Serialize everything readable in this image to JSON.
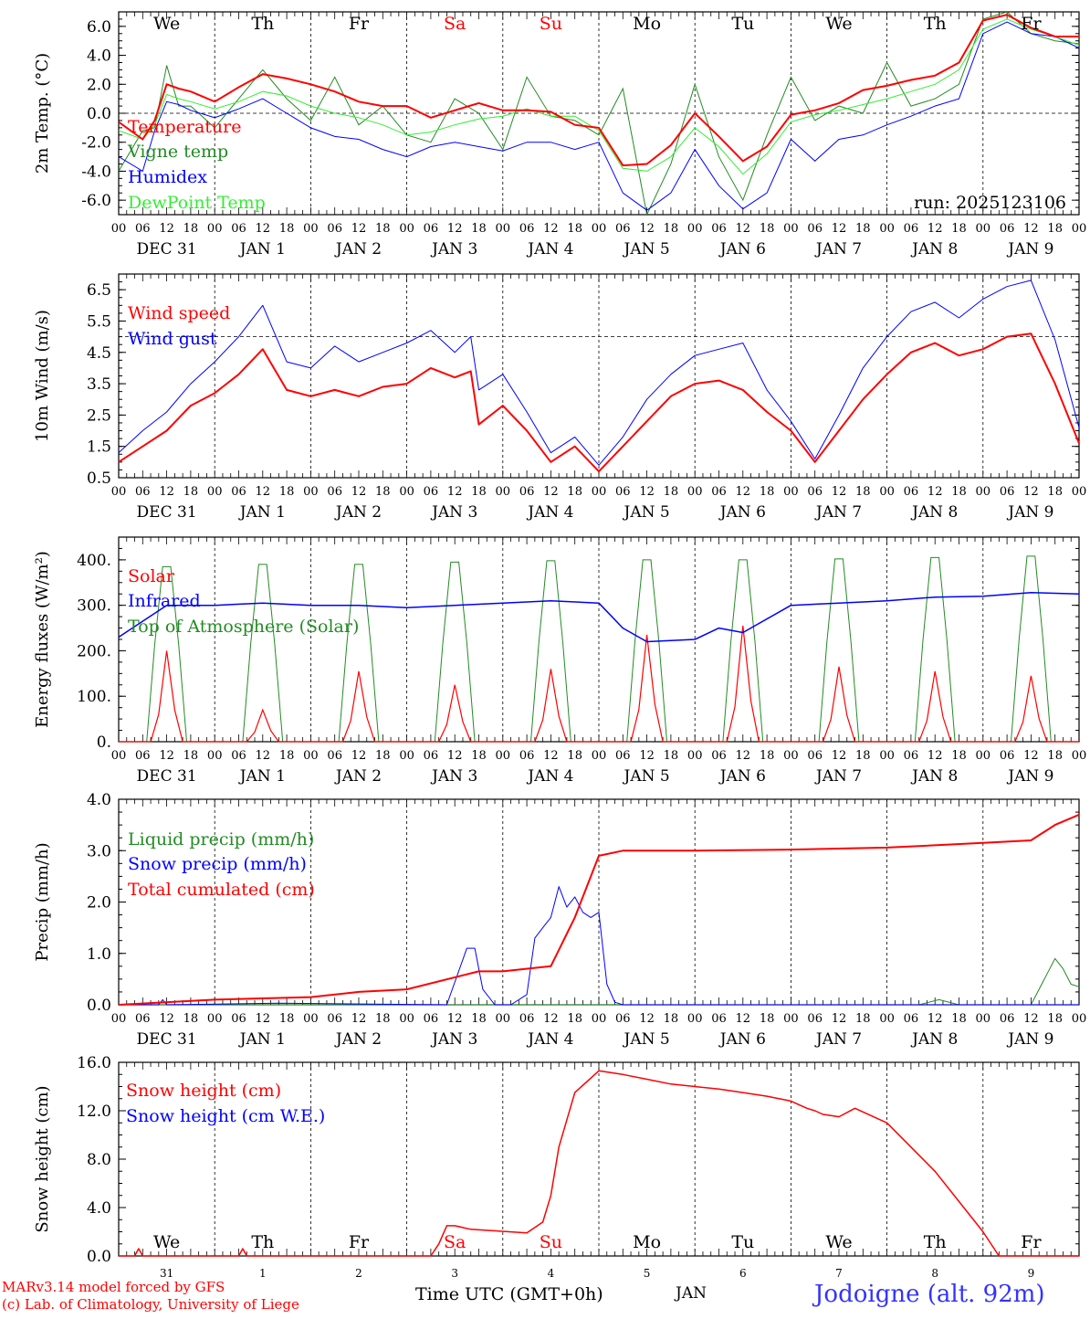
{
  "footer": {
    "credit_line1": "MARv3.14 model forced by GFS",
    "credit_line2": "(c) Lab. of Climatology, University of Liege",
    "time_label": "Time UTC (GMT+0h)",
    "month_label": "JAN",
    "station": "Jodoigne (alt. 92m)"
  },
  "colors": {
    "red": "#ff0000",
    "green": "#228b22",
    "blue": "#0000ff",
    "lightgreen": "#33ee33",
    "black": "#000000"
  },
  "axis_hours": [
    "00",
    "06",
    "12",
    "18"
  ],
  "days": [
    {
      "date": "DEC 31",
      "weekday": "We",
      "short": "31",
      "weekend": false
    },
    {
      "date": "JAN  1",
      "weekday": "Th",
      "short": "1",
      "weekend": false
    },
    {
      "date": "JAN  2",
      "weekday": "Fr",
      "short": "2",
      "weekend": false
    },
    {
      "date": "JAN  3",
      "weekday": "Sa",
      "short": "3",
      "weekend": true
    },
    {
      "date": "JAN  4",
      "weekday": "Su",
      "short": "4",
      "weekend": true
    },
    {
      "date": "JAN  5",
      "weekday": "Mo",
      "short": "5",
      "weekend": false
    },
    {
      "date": "JAN  6",
      "weekday": "Tu",
      "short": "6",
      "weekend": false
    },
    {
      "date": "JAN  7",
      "weekday": "We",
      "short": "7",
      "weekend": false
    },
    {
      "date": "JAN  8",
      "weekday": "Th",
      "short": "8",
      "weekend": false
    },
    {
      "date": "JAN  9",
      "weekday": "Fr",
      "short": "9",
      "weekend": false
    }
  ],
  "chart_data": [
    {
      "type": "line",
      "ylabel": "2m Temp. (°C)",
      "ylim": [
        -7,
        7
      ],
      "yticks": [
        "6.0",
        "4.0",
        "2.0",
        "0.0",
        "-2.0",
        "-4.0",
        "-6.0"
      ],
      "ytick_values": [
        6,
        4,
        2,
        0,
        -2,
        -4,
        -6
      ],
      "hline": 0,
      "run_label": "run: 2025123106",
      "x_unit": "hours since DEC 31 00 UTC",
      "series": [
        {
          "name": "Temperature",
          "color": "red",
          "width": 2,
          "x": [
            0,
            6,
            9,
            12,
            15,
            18,
            24,
            30,
            36,
            42,
            48,
            54,
            60,
            66,
            72,
            78,
            84,
            90,
            96,
            102,
            108,
            114,
            120,
            126,
            132,
            138,
            144,
            150,
            156,
            162,
            168,
            174,
            180,
            186,
            192,
            198,
            204,
            210,
            216,
            222,
            228,
            234,
            240
          ],
          "y": [
            -0.6,
            -1.8,
            -0.5,
            2.0,
            1.7,
            1.5,
            0.8,
            1.8,
            2.7,
            2.4,
            2.0,
            1.5,
            0.8,
            0.5,
            0.5,
            -0.3,
            0.2,
            0.7,
            0.2,
            0.2,
            0.1,
            -0.8,
            -1.0,
            -3.6,
            -3.5,
            -2.2,
            0.0,
            -1.6,
            -3.3,
            -2.3,
            -0.1,
            0.2,
            0.7,
            1.6,
            1.9,
            2.3,
            2.6,
            3.5,
            6.4,
            6.8,
            5.9,
            5.3,
            5.3
          ]
        },
        {
          "name": "Vigne temp",
          "color": "green",
          "width": 1,
          "x": [
            0,
            6,
            9,
            12,
            15,
            18,
            24,
            30,
            36,
            42,
            48,
            54,
            60,
            66,
            72,
            78,
            84,
            90,
            96,
            102,
            108,
            114,
            120,
            126,
            132,
            138,
            144,
            150,
            156,
            162,
            168,
            174,
            180,
            186,
            192,
            198,
            204,
            210,
            216,
            222,
            228,
            234,
            240
          ],
          "y": [
            -4.0,
            -1.2,
            -1.0,
            3.3,
            0.5,
            0.5,
            -1.0,
            1.0,
            3.0,
            1.0,
            -0.5,
            2.5,
            -0.8,
            0.5,
            -1.5,
            -2.0,
            1.0,
            0.0,
            -2.5,
            2.5,
            -0.2,
            -0.5,
            -1.5,
            1.7,
            -7.0,
            -3.5,
            2.0,
            -3.0,
            -6.0,
            -1.5,
            2.5,
            -0.5,
            0.5,
            0.0,
            3.5,
            0.5,
            1.0,
            2.0,
            6.5,
            7.0,
            5.5,
            5.0,
            4.8
          ]
        },
        {
          "name": "Humidex",
          "color": "blue",
          "width": 1,
          "x": [
            0,
            6,
            9,
            12,
            15,
            18,
            24,
            30,
            36,
            42,
            48,
            54,
            60,
            66,
            72,
            78,
            84,
            90,
            96,
            102,
            108,
            114,
            120,
            126,
            132,
            138,
            144,
            150,
            156,
            162,
            168,
            174,
            180,
            186,
            192,
            198,
            204,
            210,
            216,
            222,
            228,
            234,
            240
          ],
          "y": [
            -3.0,
            -4.0,
            -1.2,
            0.8,
            0.6,
            0.2,
            -0.3,
            0.3,
            1.0,
            0.0,
            -1.0,
            -1.6,
            -1.8,
            -2.5,
            -3.0,
            -2.3,
            -2.0,
            -2.3,
            -2.6,
            -2.0,
            -2.0,
            -2.5,
            -2.0,
            -5.5,
            -6.7,
            -5.5,
            -2.5,
            -5.0,
            -6.6,
            -5.5,
            -1.8,
            -3.3,
            -1.8,
            -1.5,
            -0.8,
            -0.2,
            0.5,
            1.0,
            5.5,
            6.3,
            5.5,
            5.3,
            4.5
          ]
        },
        {
          "name": "DewPoint Temp",
          "color": "lightgreen",
          "width": 1,
          "x": [
            0,
            6,
            9,
            12,
            15,
            18,
            24,
            30,
            36,
            42,
            48,
            54,
            60,
            66,
            72,
            78,
            84,
            90,
            96,
            102,
            108,
            114,
            120,
            126,
            132,
            138,
            144,
            150,
            156,
            162,
            168,
            174,
            180,
            186,
            192,
            198,
            204,
            210,
            216,
            222,
            228,
            234,
            240
          ],
          "y": [
            -1.2,
            -1.8,
            -0.8,
            1.3,
            1.0,
            0.8,
            0.3,
            0.8,
            1.5,
            1.2,
            0.5,
            0.0,
            -0.3,
            -0.8,
            -1.5,
            -1.3,
            -0.8,
            -0.4,
            -0.2,
            0.3,
            -0.2,
            -0.2,
            -1.2,
            -3.8,
            -4.0,
            -3.0,
            -1.0,
            -2.3,
            -4.2,
            -2.8,
            -0.6,
            -0.1,
            0.2,
            0.6,
            1.0,
            1.5,
            2.0,
            3.0,
            5.8,
            6.5,
            5.8,
            5.3,
            4.7
          ]
        }
      ]
    },
    {
      "type": "line",
      "ylabel": "10m Wind (m/s)",
      "ylim": [
        0.5,
        7.0
      ],
      "yticks": [
        "6.5",
        "5.5",
        "4.5",
        "3.5",
        "2.5",
        "1.5",
        "0.5"
      ],
      "ytick_values": [
        6.5,
        5.5,
        4.5,
        3.5,
        2.5,
        1.5,
        0.5
      ],
      "hline": 5.0,
      "x_unit": "hours since DEC 31 00 UTC",
      "series": [
        {
          "name": "Wind speed",
          "color": "red",
          "width": 2,
          "x": [
            0,
            6,
            12,
            18,
            24,
            30,
            36,
            42,
            48,
            54,
            60,
            66,
            72,
            78,
            84,
            88,
            90,
            96,
            102,
            108,
            114,
            120,
            126,
            132,
            138,
            144,
            150,
            156,
            162,
            168,
            174,
            180,
            186,
            192,
            198,
            204,
            210,
            216,
            222,
            228,
            234,
            240
          ],
          "y": [
            1.0,
            1.5,
            2.0,
            2.8,
            3.2,
            3.8,
            4.6,
            3.3,
            3.1,
            3.3,
            3.1,
            3.4,
            3.5,
            4.0,
            3.7,
            3.9,
            2.2,
            2.8,
            2.0,
            1.0,
            1.5,
            0.7,
            1.5,
            2.3,
            3.1,
            3.5,
            3.6,
            3.3,
            2.6,
            2.0,
            1.0,
            2.0,
            3.0,
            3.8,
            4.5,
            4.8,
            4.4,
            4.6,
            5.0,
            5.1,
            3.5,
            1.6
          ]
        },
        {
          "name": "Wind gust",
          "color": "blue",
          "width": 1,
          "x": [
            0,
            6,
            12,
            18,
            24,
            30,
            36,
            42,
            48,
            54,
            60,
            66,
            72,
            78,
            84,
            88,
            90,
            96,
            102,
            108,
            114,
            120,
            126,
            132,
            138,
            144,
            150,
            156,
            162,
            168,
            174,
            180,
            186,
            192,
            198,
            204,
            210,
            216,
            222,
            228,
            234,
            240
          ],
          "y": [
            1.3,
            2.0,
            2.6,
            3.5,
            4.2,
            5.0,
            6.0,
            4.2,
            4.0,
            4.7,
            4.2,
            4.5,
            4.8,
            5.2,
            4.5,
            5.0,
            3.3,
            3.8,
            2.6,
            1.3,
            1.8,
            0.9,
            1.8,
            3.0,
            3.8,
            4.4,
            4.6,
            4.8,
            3.3,
            2.3,
            1.1,
            2.5,
            4.0,
            5.0,
            5.8,
            6.1,
            5.6,
            6.2,
            6.6,
            6.8,
            4.9,
            2.1
          ]
        }
      ]
    },
    {
      "type": "line",
      "ylabel": "Energy fluxes (W/m²)",
      "ylim": [
        0,
        450
      ],
      "yticks": [
        "400.",
        "300.",
        "200.",
        "100.",
        "0."
      ],
      "ytick_values": [
        400,
        300,
        200,
        100,
        0
      ],
      "x_unit": "hours since DEC 31 00 UTC",
      "solar_peaks": [
        200,
        70,
        155,
        125,
        160,
        235,
        255,
        165,
        155,
        145
      ],
      "toa_peak": [
        385,
        390,
        390,
        395,
        398,
        400,
        400,
        402,
        405,
        408
      ],
      "infrared": {
        "x": [
          0,
          12,
          24,
          36,
          48,
          60,
          72,
          84,
          96,
          108,
          120,
          126,
          132,
          144,
          150,
          156,
          168,
          180,
          192,
          204,
          216,
          228,
          240
        ],
        "y": [
          230,
          300,
          300,
          305,
          300,
          300,
          295,
          300,
          305,
          310,
          305,
          250,
          220,
          225,
          250,
          240,
          300,
          305,
          310,
          318,
          320,
          328,
          325
        ]
      },
      "series": [
        {
          "name": "Solar",
          "color": "red"
        },
        {
          "name": "Infrared",
          "color": "blue"
        },
        {
          "name": "Top of Atmosphere (Solar)",
          "color": "green"
        }
      ]
    },
    {
      "type": "line",
      "ylabel": "Precip (mm/h)",
      "ylim": [
        0,
        4.0
      ],
      "yticks": [
        "4.0",
        "3.0",
        "2.0",
        "1.0",
        "0.0"
      ],
      "ytick_values": [
        4,
        3,
        2,
        1,
        0
      ],
      "x_unit": "hours since DEC 31 00 UTC",
      "series": [
        {
          "name": "Liquid precip (mm/h)",
          "color": "green",
          "width": 1,
          "x": [
            0,
            200,
            205,
            210,
            215,
            220,
            228,
            232,
            234,
            236,
            238,
            240
          ],
          "y": [
            0,
            0,
            0.1,
            0,
            0,
            0,
            0,
            0.6,
            0.9,
            0.7,
            0.4,
            0.35
          ]
        },
        {
          "name": "Snow precip (mm/h)",
          "color": "blue",
          "width": 1,
          "x": [
            0,
            10,
            11,
            12,
            40,
            82,
            87,
            89,
            91,
            94,
            98,
            102,
            104,
            106,
            108,
            110,
            112,
            114,
            116,
            118,
            120,
            122,
            124,
            126,
            128,
            130,
            240
          ],
          "y": [
            0,
            0,
            0.1,
            0,
            0.03,
            0,
            1.1,
            1.1,
            0.3,
            0,
            0,
            0.2,
            1.3,
            1.5,
            1.7,
            2.3,
            1.9,
            2.1,
            1.8,
            1.7,
            1.8,
            0.4,
            0.05,
            0,
            0,
            0,
            0
          ]
        },
        {
          "name": "Total cumulated (cm)",
          "color": "red",
          "width": 2,
          "x": [
            0,
            24,
            48,
            60,
            72,
            90,
            96,
            108,
            114,
            120,
            126,
            144,
            168,
            192,
            216,
            228,
            234,
            240
          ],
          "y": [
            0,
            0.1,
            0.15,
            0.25,
            0.3,
            0.65,
            0.65,
            0.75,
            1.7,
            2.9,
            3.0,
            3.0,
            3.02,
            3.06,
            3.15,
            3.2,
            3.5,
            3.7
          ]
        }
      ]
    },
    {
      "type": "line",
      "ylabel": "Snow height (cm)",
      "ylim": [
        0,
        16.0
      ],
      "yticks": [
        "16.0",
        "12.0",
        "8.0",
        "4.0",
        "0.0"
      ],
      "ytick_values": [
        16,
        12,
        8,
        4,
        0
      ],
      "x_unit": "hours since DEC 31 00 UTC",
      "series": [
        {
          "name": "Snow height (cm)",
          "color": "red",
          "width": 1.5,
          "x": [
            0,
            4,
            5,
            6,
            7,
            30,
            31,
            32,
            33,
            69,
            72,
            75,
            78,
            80,
            82,
            84,
            88,
            102,
            106,
            108,
            110,
            114,
            120,
            126,
            132,
            138,
            144,
            150,
            156,
            162,
            168,
            170,
            172,
            174,
            176,
            178,
            180,
            184,
            192,
            198,
            204,
            210,
            216,
            220,
            240
          ],
          "y": [
            0,
            0,
            0.6,
            0,
            0,
            0,
            0.6,
            0,
            0,
            0,
            0,
            0,
            0,
            1.0,
            2.5,
            2.5,
            2.2,
            1.9,
            2.8,
            5.0,
            9.0,
            13.5,
            15.3,
            15.0,
            14.6,
            14.2,
            14.0,
            13.8,
            13.5,
            13.2,
            12.8,
            12.5,
            12.2,
            12.0,
            11.7,
            11.6,
            11.5,
            12.2,
            11.0,
            9.0,
            7.0,
            4.5,
            2.0,
            0,
            0
          ]
        },
        {
          "name": "Snow height (cm W.E.)",
          "color": "blue",
          "width": 1
        }
      ]
    }
  ]
}
